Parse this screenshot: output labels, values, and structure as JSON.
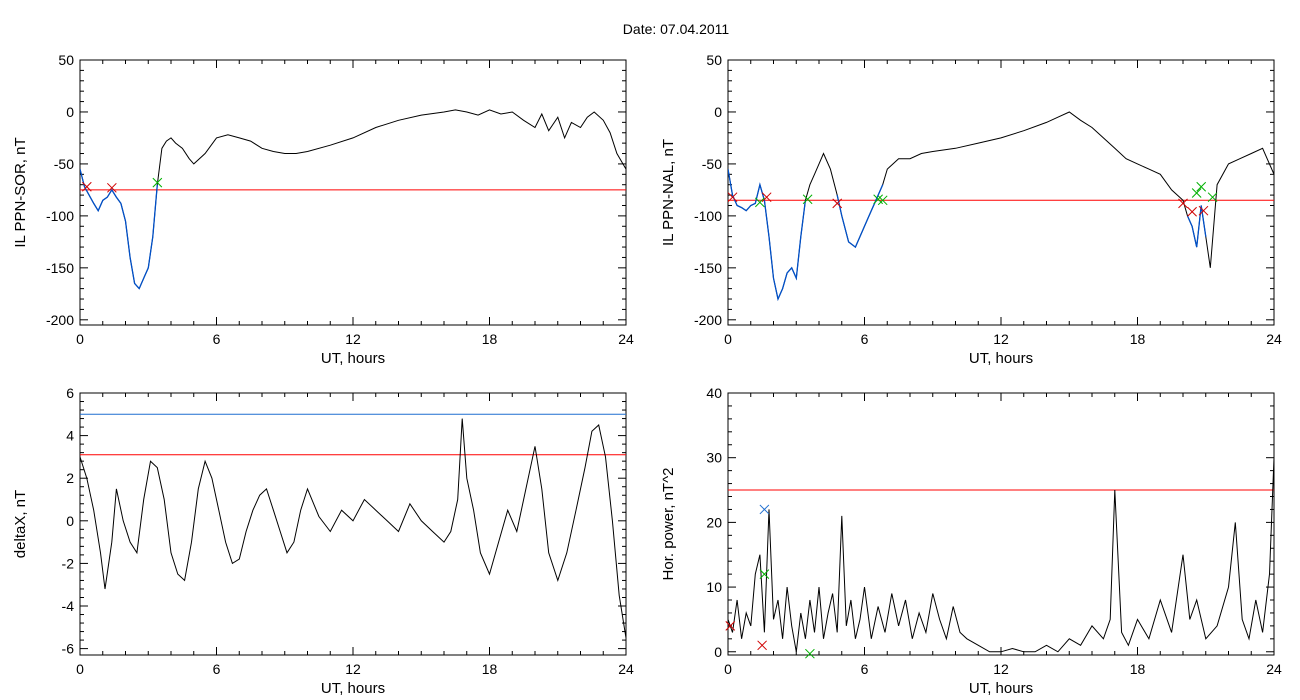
{
  "figure": {
    "date_label": "Date:  07.04.2011"
  },
  "colors": {
    "threshold": "#ff0000",
    "highlight": "#0050c8",
    "secondary_line": "#1f6fd0",
    "marker_red": "#d00000",
    "marker_green": "#00b000",
    "marker_blue": "#1f6fd0",
    "trace": "#000000"
  },
  "chart_data": [
    {
      "type": "line",
      "xlabel": "UT, hours",
      "ylabel": "IL PPN-SOR, nT",
      "xlim": [
        0,
        24
      ],
      "ylim": [
        -205,
        50
      ],
      "xticks": [
        0,
        6,
        12,
        18,
        24
      ],
      "yticks": [
        -200,
        -150,
        -100,
        -50,
        0,
        50
      ],
      "threshold": -75,
      "highlight_x": [
        0.0,
        3.4
      ],
      "series": [
        {
          "x": [
            0,
            0.2,
            0.4,
            0.6,
            0.8,
            1,
            1.2,
            1.4,
            1.6,
            1.8,
            2,
            2.2,
            2.4,
            2.6,
            2.8,
            3,
            3.2,
            3.4,
            3.6,
            3.8,
            4,
            4.2,
            4.5,
            4.8,
            5,
            5.5,
            6,
            6.5,
            7,
            7.5,
            8,
            8.5,
            9,
            9.5,
            10,
            11,
            12,
            13,
            14,
            15,
            16,
            16.5,
            17,
            17.5,
            18,
            18.5,
            19,
            19.5,
            20,
            20.3,
            20.6,
            21,
            21.3,
            21.6,
            22,
            22.3,
            22.6,
            23,
            23.3,
            23.6,
            24
          ],
          "y": [
            -55,
            -72,
            -80,
            -88,
            -95,
            -85,
            -82,
            -75,
            -82,
            -88,
            -105,
            -140,
            -165,
            -170,
            -160,
            -150,
            -120,
            -70,
            -35,
            -28,
            -25,
            -30,
            -35,
            -45,
            -50,
            -40,
            -25,
            -22,
            -25,
            -28,
            -35,
            -38,
            -40,
            -40,
            -38,
            -32,
            -25,
            -15,
            -8,
            -3,
            0,
            2,
            0,
            -3,
            2,
            -2,
            0,
            -8,
            -15,
            -2,
            -18,
            -5,
            -25,
            -10,
            -15,
            -5,
            0,
            -8,
            -20,
            -40,
            -55
          ]
        }
      ],
      "markers": [
        {
          "x": 0.3,
          "y": -72,
          "color": "red"
        },
        {
          "x": 1.4,
          "y": -73,
          "color": "red"
        },
        {
          "x": 3.4,
          "y": -68,
          "color": "green"
        }
      ]
    },
    {
      "type": "line",
      "xlabel": "UT, hours",
      "ylabel": "IL PPN-NAL, nT",
      "xlim": [
        0,
        24
      ],
      "ylim": [
        -205,
        50
      ],
      "xticks": [
        0,
        6,
        12,
        18,
        24
      ],
      "yticks": [
        -200,
        -150,
        -100,
        -50,
        0,
        50
      ],
      "threshold": -85,
      "highlight_x": [
        [
          0.0,
          3.5
        ],
        [
          4.8,
          6.8
        ],
        [
          20.1,
          21.1
        ]
      ],
      "series": [
        {
          "x": [
            0,
            0.2,
            0.4,
            0.6,
            0.8,
            1,
            1.2,
            1.4,
            1.6,
            1.8,
            2,
            2.2,
            2.4,
            2.6,
            2.8,
            3,
            3.2,
            3.4,
            3.6,
            3.8,
            4,
            4.2,
            4.5,
            4.8,
            5,
            5.3,
            5.6,
            5.9,
            6.2,
            6.5,
            6.8,
            7,
            7.5,
            8,
            8.5,
            9,
            10,
            11,
            12,
            13,
            14,
            14.5,
            15,
            15.5,
            16,
            16.5,
            17,
            17.5,
            18,
            18.5,
            19,
            19.5,
            20,
            20.2,
            20.4,
            20.6,
            20.8,
            21,
            21.2,
            21.5,
            22,
            22.5,
            23,
            23.5,
            24
          ],
          "y": [
            -55,
            -80,
            -90,
            -92,
            -95,
            -90,
            -88,
            -70,
            -85,
            -120,
            -160,
            -180,
            -170,
            -155,
            -150,
            -160,
            -120,
            -85,
            -70,
            -60,
            -50,
            -40,
            -55,
            -80,
            -100,
            -125,
            -130,
            -115,
            -100,
            -85,
            -70,
            -55,
            -45,
            -45,
            -40,
            -38,
            -35,
            -30,
            -25,
            -18,
            -10,
            -5,
            0,
            -8,
            -15,
            -25,
            -35,
            -45,
            -50,
            -55,
            -60,
            -75,
            -85,
            -100,
            -110,
            -130,
            -90,
            -120,
            -150,
            -70,
            -50,
            -45,
            -40,
            -35,
            -60
          ]
        }
      ],
      "markers": [
        {
          "x": 0.2,
          "y": -82,
          "color": "red"
        },
        {
          "x": 1.4,
          "y": -87,
          "color": "green"
        },
        {
          "x": 1.7,
          "y": -82,
          "color": "red"
        },
        {
          "x": 3.5,
          "y": -84,
          "color": "green"
        },
        {
          "x": 4.8,
          "y": -88,
          "color": "red"
        },
        {
          "x": 6.6,
          "y": -84,
          "color": "green"
        },
        {
          "x": 6.8,
          "y": -85,
          "color": "green"
        },
        {
          "x": 20.0,
          "y": -88,
          "color": "red"
        },
        {
          "x": 20.4,
          "y": -96,
          "color": "red"
        },
        {
          "x": 20.6,
          "y": -78,
          "color": "green"
        },
        {
          "x": 20.8,
          "y": -72,
          "color": "green"
        },
        {
          "x": 20.9,
          "y": -95,
          "color": "red"
        },
        {
          "x": 21.3,
          "y": -82,
          "color": "green"
        }
      ]
    },
    {
      "type": "line",
      "xlabel": "UT, hours",
      "ylabel": "deltaX, nT",
      "xlim": [
        0,
        24
      ],
      "ylim": [
        -6.3,
        6
      ],
      "xticks": [
        0,
        6,
        12,
        18,
        24
      ],
      "yticks": [
        -6,
        -4,
        -2,
        0,
        2,
        4,
        6
      ],
      "threshold": 3.1,
      "upper_line": 5.0,
      "series": [
        {
          "x": [
            0,
            0.3,
            0.6,
            0.9,
            1.1,
            1.4,
            1.6,
            1.9,
            2.2,
            2.5,
            2.8,
            3.1,
            3.4,
            3.7,
            4,
            4.3,
            4.6,
            4.9,
            5.2,
            5.5,
            5.8,
            6.1,
            6.4,
            6.7,
            7,
            7.3,
            7.6,
            7.9,
            8.2,
            8.5,
            8.8,
            9.1,
            9.4,
            9.7,
            10,
            10.5,
            11,
            11.5,
            12,
            12.5,
            13,
            13.5,
            14,
            14.5,
            15,
            15.5,
            16,
            16.3,
            16.6,
            16.8,
            17,
            17.3,
            17.6,
            18,
            18.4,
            18.8,
            19.2,
            19.6,
            20,
            20.3,
            20.6,
            21,
            21.4,
            21.8,
            22.2,
            22.5,
            22.8,
            23.1,
            23.4,
            23.7,
            24
          ],
          "y": [
            3,
            2,
            0.5,
            -1.5,
            -3.2,
            -1,
            1.5,
            0,
            -1,
            -1.5,
            1,
            2.8,
            2.5,
            1,
            -1.5,
            -2.5,
            -2.8,
            -1,
            1.5,
            2.8,
            2,
            0.5,
            -1,
            -2,
            -1.8,
            -0.5,
            0.5,
            1.2,
            1.5,
            0.5,
            -0.5,
            -1.5,
            -1,
            0.5,
            1.5,
            0.2,
            -0.5,
            0.5,
            0,
            1,
            0.5,
            0,
            -0.5,
            0.8,
            0,
            -0.5,
            -1,
            -0.5,
            1,
            4.8,
            2,
            0.5,
            -1.5,
            -2.5,
            -1,
            0.5,
            -0.5,
            1.5,
            3.5,
            1.5,
            -1.5,
            -2.8,
            -1.5,
            0.5,
            2.5,
            4.2,
            4.5,
            3,
            0,
            -3.5,
            -5.5
          ]
        }
      ]
    },
    {
      "type": "line",
      "xlabel": "UT, hours",
      "ylabel": "Hor. power, nT^2",
      "xlim": [
        0,
        24
      ],
      "ylim": [
        -0.5,
        40
      ],
      "xticks": [
        0,
        6,
        12,
        18,
        24
      ],
      "yticks": [
        0,
        10,
        20,
        30,
        40
      ],
      "threshold": 25,
      "series": [
        {
          "x": [
            0,
            0.2,
            0.4,
            0.6,
            0.8,
            1,
            1.2,
            1.4,
            1.6,
            1.8,
            2,
            2.2,
            2.4,
            2.6,
            2.8,
            3,
            3.2,
            3.4,
            3.6,
            3.8,
            4,
            4.2,
            4.4,
            4.6,
            4.8,
            5,
            5.2,
            5.4,
            5.6,
            5.8,
            6,
            6.3,
            6.6,
            6.9,
            7.2,
            7.5,
            7.8,
            8.1,
            8.4,
            8.7,
            9,
            9.3,
            9.6,
            9.9,
            10.2,
            10.5,
            11,
            11.5,
            12,
            12.5,
            13,
            13.5,
            14,
            14.5,
            15,
            15.5,
            16,
            16.5,
            16.8,
            17,
            17.3,
            17.6,
            18,
            18.5,
            19,
            19.5,
            20,
            20.3,
            20.6,
            21,
            21.5,
            22,
            22.3,
            22.6,
            22.9,
            23.2,
            23.5,
            23.8,
            24
          ],
          "y": [
            5,
            3,
            8,
            2,
            6,
            4,
            12,
            15,
            3,
            22,
            5,
            8,
            2,
            10,
            4,
            0,
            6,
            2,
            8,
            3,
            10,
            2,
            6,
            9,
            3,
            21,
            4,
            8,
            2,
            5,
            10,
            2,
            7,
            3,
            9,
            4,
            8,
            2,
            6,
            3,
            9,
            5,
            2,
            7,
            3,
            2,
            1,
            0,
            0,
            0.5,
            0,
            0,
            1,
            0,
            2,
            1,
            4,
            2,
            5,
            25,
            3,
            1,
            5,
            2,
            8,
            3,
            15,
            5,
            8,
            2,
            4,
            10,
            20,
            5,
            2,
            8,
            3,
            12,
            30
          ]
        }
      ],
      "markers": [
        {
          "x": 0.1,
          "y": 4,
          "color": "red"
        },
        {
          "x": 1.5,
          "y": 1,
          "color": "red"
        },
        {
          "x": 1.6,
          "y": 12,
          "color": "green"
        },
        {
          "x": 1.6,
          "y": 22,
          "color": "blue"
        },
        {
          "x": 3.6,
          "y": -0.3,
          "color": "green"
        }
      ]
    }
  ]
}
